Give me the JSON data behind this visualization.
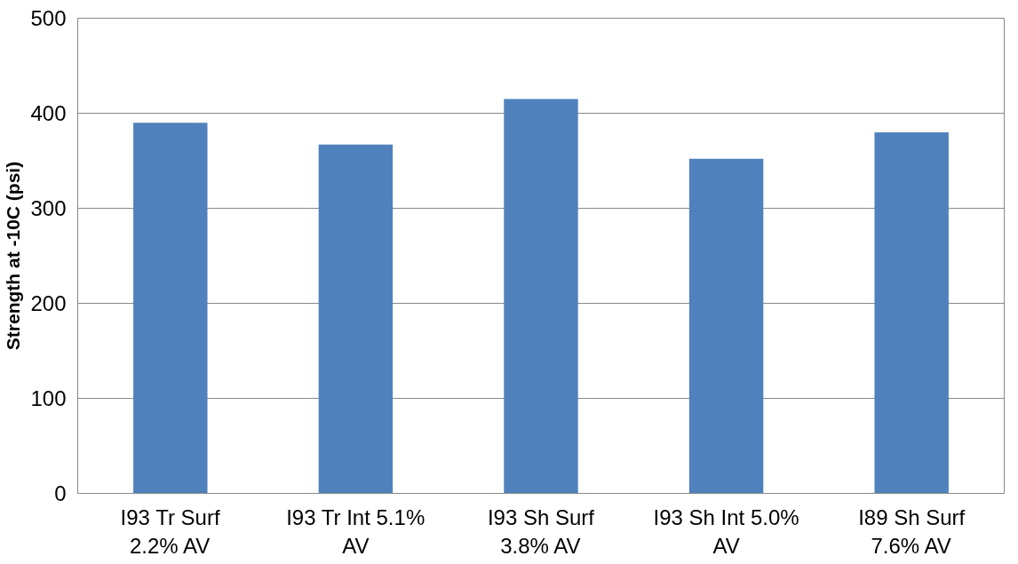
{
  "chart_data": {
    "type": "bar",
    "ylabel": "Strength at -10C (psi)",
    "categories": [
      "I93 Tr Surf 2.2% AV",
      "I93 Tr Int 5.1% AV",
      "I93 Sh Surf 3.8% AV",
      "I93 Sh Int 5.0% AV",
      "I89 Sh Surf 7.6% AV"
    ],
    "values": [
      390,
      367,
      415,
      352,
      380
    ],
    "color": "#4f81bd",
    "ylim": [
      0,
      500
    ],
    "yticks": [
      0,
      100,
      200,
      300,
      400,
      500
    ],
    "grid": "y"
  }
}
